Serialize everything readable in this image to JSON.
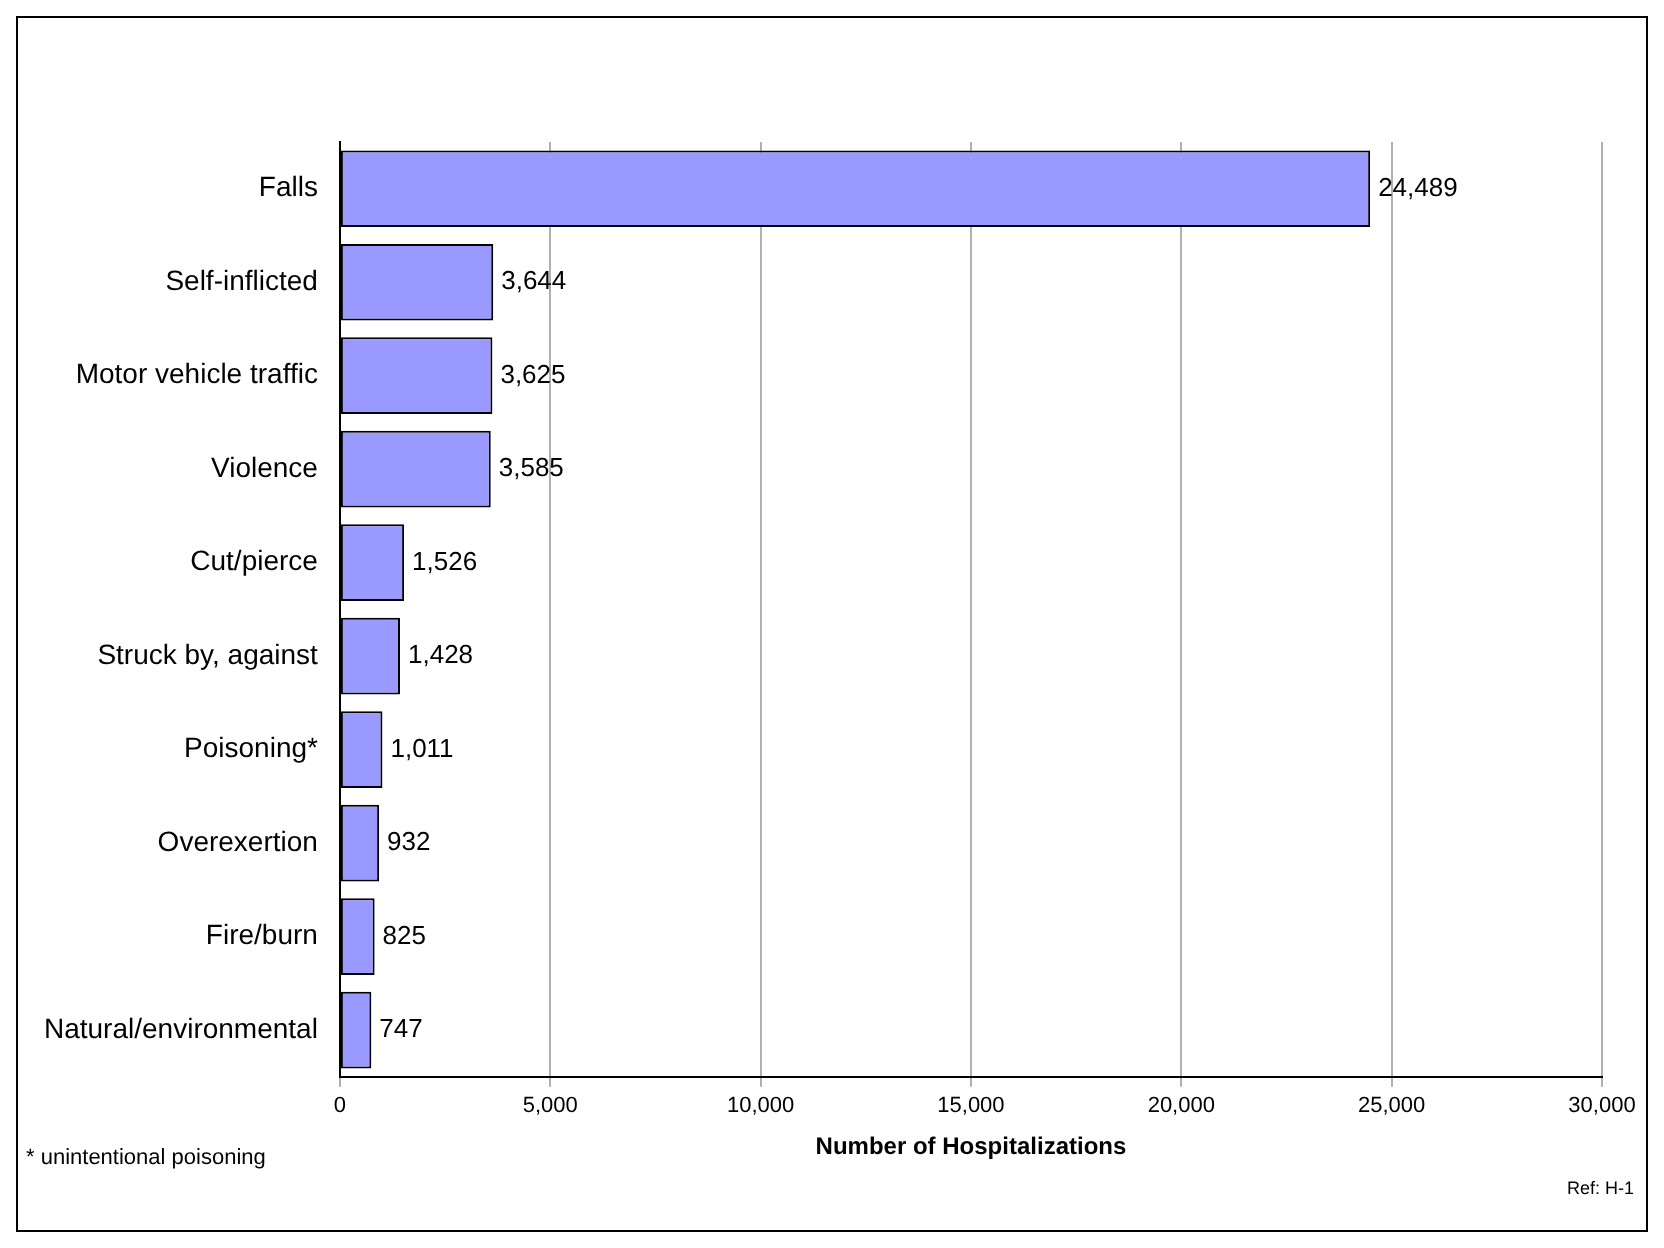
{
  "chart_data": {
    "type": "bar",
    "orientation": "horizontal",
    "xlabel": "Number of Hospitalizations",
    "categories": [
      "Falls",
      "Self-inflicted",
      "Motor vehicle traffic",
      "Violence",
      "Cut/pierce",
      "Struck by, against",
      "Poisoning*",
      "Overexertion",
      "Fire/burn",
      "Natural/environmental"
    ],
    "values": [
      24489,
      3644,
      3625,
      3585,
      1526,
      1428,
      1011,
      932,
      825,
      747
    ],
    "value_labels": [
      "24,489",
      "3,644",
      "3,625",
      "3,585",
      "1,526",
      "1,428",
      "1,011",
      "932",
      "825",
      "747"
    ],
    "color": "#9999ff",
    "xlim": [
      0,
      30000
    ],
    "xticks": [
      0,
      {
        "value": 5000,
        "label": "5,000"
      },
      {
        "value": 10000,
        "label": "10,000"
      },
      {
        "value": 15000,
        "label": "15,000"
      },
      {
        "value": 20000,
        "label": "20,000"
      },
      {
        "value": 25000,
        "label": "25,000"
      },
      {
        "value": 30000,
        "label": "30,000"
      }
    ],
    "grid": "x",
    "legend": false,
    "annotations": [
      "* unintentional poisoning",
      "Ref: H-1"
    ]
  }
}
